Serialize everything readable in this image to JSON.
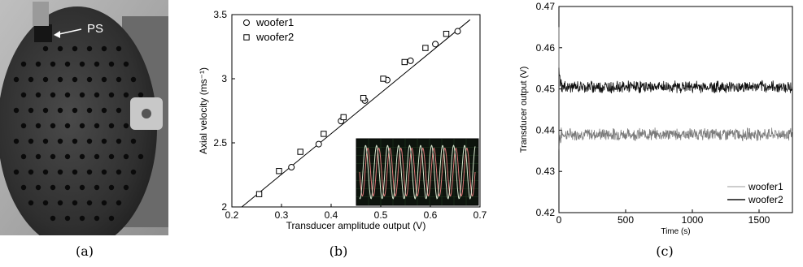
{
  "captions": {
    "a": "(a)",
    "b": "(b)",
    "c": "(c)"
  },
  "photo": {
    "pointer_label": "PS"
  },
  "chart_data": [
    {
      "type": "scatter",
      "panel": "b",
      "xlabel": "Transducer amplitude output (V)",
      "ylabel": "Axial velocity (ms⁻¹)",
      "xlim": [
        0.2,
        0.7
      ],
      "ylim": [
        2,
        3.5
      ],
      "xticks": [
        "0.2",
        "0.3",
        "0.4",
        "0.5",
        "0.6",
        "0.7"
      ],
      "yticks": [
        "2",
        "2.5",
        "3",
        "3.5"
      ],
      "legend_position": "top-left",
      "series": [
        {
          "name": "woofer1",
          "marker": "circle",
          "x": [
            0.32,
            0.375,
            0.42,
            0.468,
            0.513,
            0.56,
            0.61,
            0.655
          ],
          "y": [
            2.31,
            2.49,
            2.67,
            2.83,
            2.99,
            3.14,
            3.27,
            3.37
          ]
        },
        {
          "name": "woofer2",
          "marker": "square",
          "x": [
            0.255,
            0.295,
            0.338,
            0.385,
            0.425,
            0.465,
            0.505,
            0.548,
            0.59,
            0.632
          ],
          "y": [
            2.1,
            2.28,
            2.43,
            2.57,
            2.7,
            2.85,
            3.0,
            3.13,
            3.24,
            3.35
          ]
        }
      ],
      "fit_line": {
        "x": [
          0.22,
          0.68
        ],
        "y": [
          2.0,
          3.46
        ]
      },
      "inset": {
        "description": "oscilloscope trace",
        "colors": [
          "#e07a7a",
          "#d9e8d0"
        ]
      }
    },
    {
      "type": "line",
      "panel": "c",
      "xlabel": "Time (s)",
      "ylabel": "Transducer output (V)",
      "xlim": [
        0,
        1750
      ],
      "ylim": [
        0.42,
        0.47
      ],
      "xticks": [
        "0",
        "500",
        "1000",
        "1500"
      ],
      "yticks": [
        "0.42",
        "0.43",
        "0.44",
        "0.45",
        "0.46",
        "0.47"
      ],
      "legend_position": "bottom-right",
      "series": [
        {
          "name": "woofer1",
          "color": "#7a7a7a",
          "mean": 0.439,
          "noise": 0.0012
        },
        {
          "name": "woofer2",
          "color": "#111111",
          "mean": 0.4505,
          "noise": 0.0012
        }
      ]
    }
  ]
}
